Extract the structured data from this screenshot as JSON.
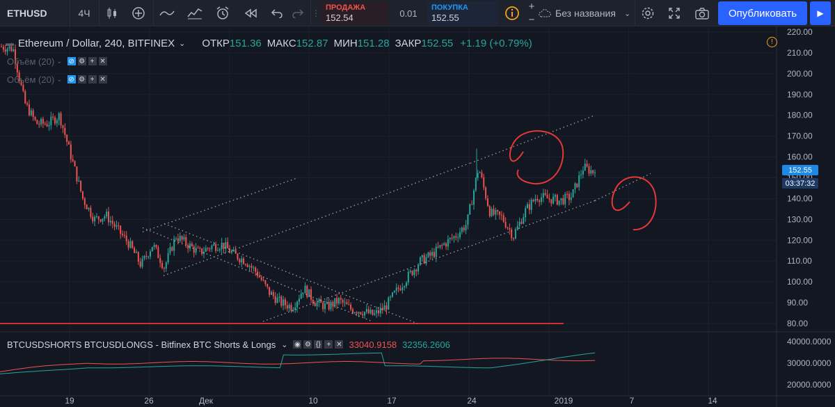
{
  "toolbar": {
    "symbol": "ETHUSD",
    "interval": "4Ч",
    "sell_label": "ПРОДАЖА",
    "sell_price": "152.54",
    "spread": "0.01",
    "buy_label": "ПОКУПКА",
    "buy_price": "152.55",
    "layout_name": "Без названия",
    "publish_label": "Опубликовать",
    "icons": [
      "candles-icon",
      "add-indicator-icon",
      "line-tool-icon",
      "compare-icon",
      "alert-icon",
      "replay-icon",
      "undo-icon",
      "redo-icon",
      "info-icon",
      "plus-icon",
      "minus-icon",
      "cloud-icon",
      "chevron-down-icon",
      "settings-icon",
      "fullscreen-icon",
      "camera-icon",
      "play-icon"
    ]
  },
  "legend": {
    "title": "Ethereum / Dollar, 240, BITFINEX",
    "open_label": "ОТКР",
    "open": "151.36",
    "high_label": "МАКС",
    "high": "152.87",
    "low_label": "МИН",
    "low": "151.28",
    "close_label": "ЗАКР",
    "close": "152.55",
    "change": "+1.19 (+0.79%)"
  },
  "volume_indicators": [
    "Объём (20)",
    "Объём (20)"
  ],
  "price_tags": {
    "last_price": "152.55",
    "countdown": "03:37:32"
  },
  "btc_indicator": {
    "title": "BTCUSDSHORTS BTCUSDLONGS - Bitfinex BTC Shorts & Longs",
    "shorts_value": "33040.9158",
    "longs_value": "32356.2606"
  },
  "colors": {
    "background": "#131722",
    "up": "#26a69a",
    "down": "#ef5350",
    "annotation": "#e53935",
    "accent": "#2962ff"
  },
  "chart_data": {
    "type": "candlestick",
    "price_axis_ticks": [
      "220.00",
      "210.00",
      "200.00",
      "190.00",
      "180.00",
      "170.00",
      "160.00",
      "150.00",
      "140.00",
      "130.00",
      "120.00",
      "110.00",
      "100.00",
      "90.00",
      "80.00"
    ],
    "indicator_axis_ticks": [
      "40000.0000",
      "30000.0000",
      "20000.0000"
    ],
    "time_axis_ticks": [
      "19",
      "26",
      "Дек",
      "10",
      "17",
      "24",
      "2019",
      "7",
      "14"
    ],
    "horizontal_level": 80,
    "close_path": [
      [
        "13 Nov",
        213
      ],
      [
        "14 Nov",
        212
      ],
      [
        "15 Nov",
        186
      ],
      [
        "16 Nov",
        176
      ],
      [
        "17 Nov",
        176
      ],
      [
        "18 Nov",
        180
      ],
      [
        "19 Nov",
        160
      ],
      [
        "20 Nov",
        140
      ],
      [
        "21 Nov",
        130
      ],
      [
        "22 Nov",
        132
      ],
      [
        "23 Nov",
        125
      ],
      [
        "24 Nov",
        118
      ],
      [
        "25 Nov",
        108
      ],
      [
        "26 Nov",
        118
      ],
      [
        "27 Nov",
        107
      ],
      [
        "28 Nov",
        122
      ],
      [
        "29 Nov",
        118
      ],
      [
        "30 Nov",
        114
      ],
      [
        "1 Dec",
        117
      ],
      [
        "2 Dec",
        118
      ],
      [
        "3 Dec",
        113
      ],
      [
        "4 Dec",
        110
      ],
      [
        "5 Dec",
        104
      ],
      [
        "6 Dec",
        95
      ],
      [
        "7 Dec",
        90
      ],
      [
        "8 Dec",
        88
      ],
      [
        "9 Dec",
        97
      ],
      [
        "10 Dec",
        90
      ],
      [
        "11 Dec",
        88
      ],
      [
        "12 Dec",
        91
      ],
      [
        "13 Dec",
        87
      ],
      [
        "14 Dec",
        86
      ],
      [
        "15 Dec",
        84
      ],
      [
        "16 Dec",
        88
      ],
      [
        "17 Dec",
        96
      ],
      [
        "18 Dec",
        103
      ],
      [
        "19 Dec",
        110
      ],
      [
        "20 Dec",
        113
      ],
      [
        "21 Dec",
        118
      ],
      [
        "22 Dec",
        122
      ],
      [
        "23 Dec",
        128
      ],
      [
        "24 Dec",
        155
      ],
      [
        "25 Dec",
        133
      ],
      [
        "26 Dec",
        131
      ],
      [
        "27 Dec",
        122
      ],
      [
        "28 Dec",
        134
      ],
      [
        "29 Dec",
        141
      ],
      [
        "30 Dec",
        140
      ],
      [
        "31 Dec",
        139
      ],
      [
        "1 Jan",
        141
      ],
      [
        "2 Jan",
        155
      ],
      [
        "3 Jan",
        152.55
      ]
    ]
  }
}
